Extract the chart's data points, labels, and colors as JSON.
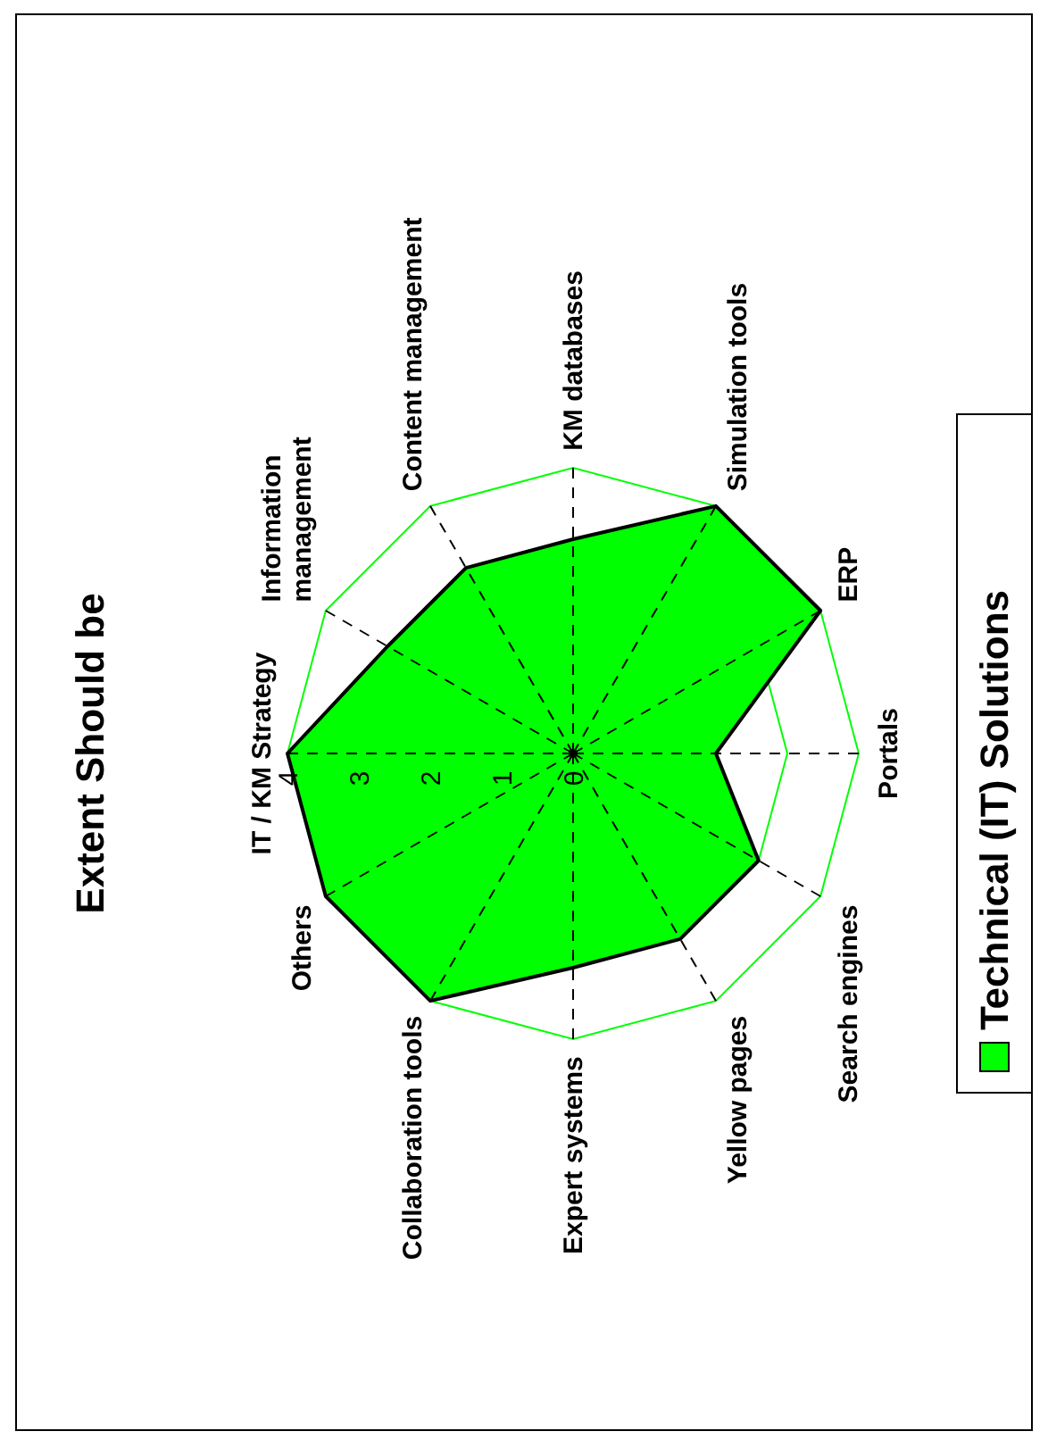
{
  "chart_data": {
    "type": "radar",
    "title": "Extent Should be",
    "categories": [
      "IT / KM Strategy",
      "Information management",
      "Content management",
      "KM databases",
      "Simulation tools",
      "ERP",
      "Portals",
      "Search engines",
      "Yellow pages",
      "Expert systems",
      "Collaboration tools",
      "Others"
    ],
    "series": [
      {
        "name": "Technical (IT) Solutions",
        "color": "#00ff00",
        "values": [
          4,
          3,
          3,
          3,
          4,
          4,
          2,
          3,
          3,
          3,
          4,
          4
        ]
      }
    ],
    "ylim": [
      0,
      4
    ],
    "yticks": [
      0,
      1,
      2,
      3,
      4
    ],
    "grid": true,
    "legend": "bottom",
    "line_style": "dashed"
  }
}
